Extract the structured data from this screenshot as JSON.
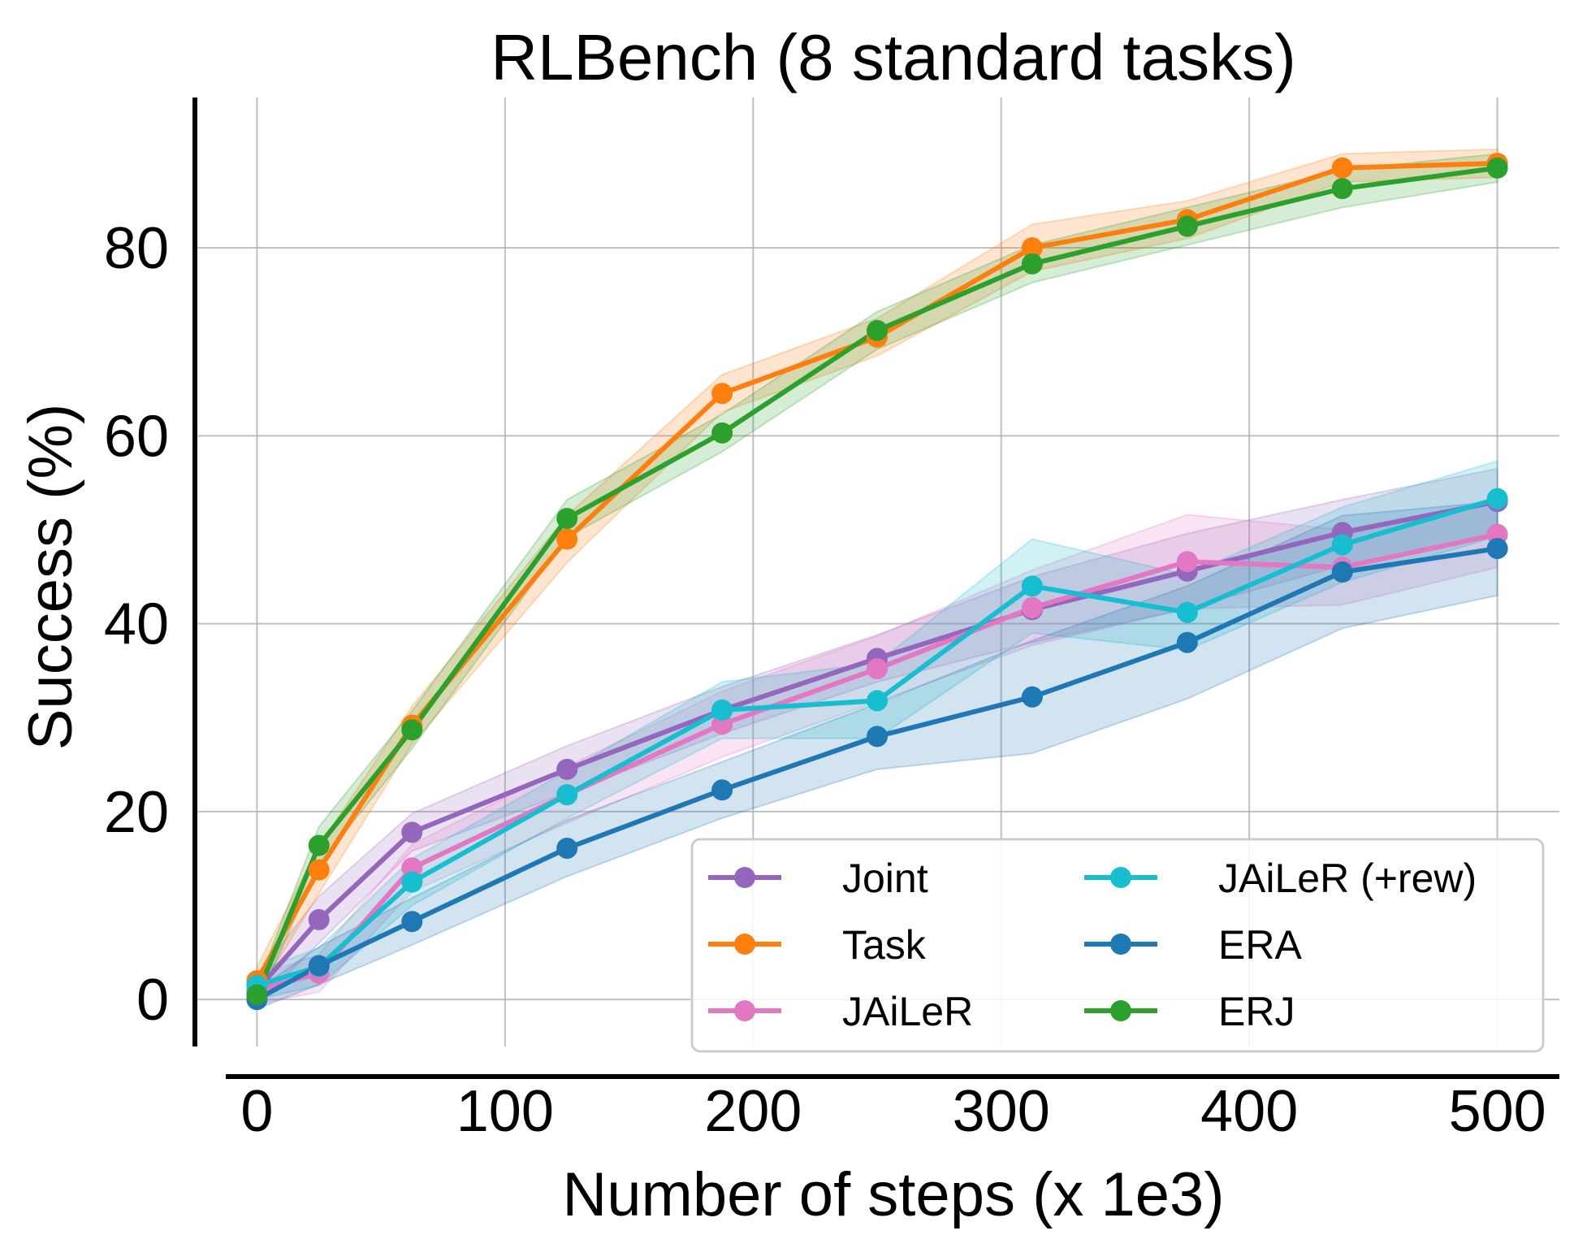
{
  "chart_data": {
    "type": "line",
    "title": "RLBench (8 standard tasks)",
    "xlabel": "Number of steps (x 1e3)",
    "ylabel": "Success (%)",
    "xlim": [
      -25,
      525
    ],
    "ylim": [
      -5,
      96
    ],
    "xticks": [
      0,
      100,
      200,
      300,
      400,
      500
    ],
    "yticks": [
      0,
      20,
      40,
      60,
      80
    ],
    "grid": true,
    "legend": {
      "placement": "bottom-right",
      "columns": 2
    },
    "x": [
      0,
      25,
      62.5,
      125,
      187.5,
      250,
      312.5,
      375,
      437.5,
      500
    ],
    "series": [
      {
        "name": "Joint",
        "color": "#9467bd",
        "values": [
          1.0,
          8.5,
          17.8,
          24.5,
          30.8,
          36.3,
          41.5,
          45.6,
          49.7,
          53.0
        ],
        "band": [
          1.5,
          2.5,
          2.0,
          2.5,
          2.5,
          2.5,
          3.5,
          4.0,
          3.5,
          3.5
        ]
      },
      {
        "name": "Task",
        "color": "#ff7f0e",
        "values": [
          2.0,
          13.8,
          29.2,
          49.0,
          64.5,
          70.5,
          80.0,
          83.0,
          88.5,
          89.0
        ],
        "band": [
          1.5,
          2.5,
          2.0,
          2.5,
          2.0,
          2.0,
          2.5,
          2.0,
          1.5,
          1.5
        ]
      },
      {
        "name": "JAiLeR",
        "color": "#e377c2",
        "values": [
          1.0,
          2.8,
          14.0,
          21.8,
          29.3,
          35.2,
          41.7,
          46.6,
          46.0,
          49.5
        ],
        "band": [
          1.5,
          2.0,
          2.5,
          3.0,
          3.5,
          3.5,
          4.0,
          5.0,
          4.0,
          3.5
        ]
      },
      {
        "name": "JAiLeR (+rew)",
        "color": "#17becf",
        "values": [
          1.5,
          3.5,
          12.5,
          21.8,
          30.8,
          31.8,
          44.0,
          41.2,
          48.4,
          53.3
        ],
        "band": [
          1.5,
          2.0,
          2.5,
          2.5,
          3.0,
          4.0,
          5.0,
          4.0,
          4.0,
          4.0
        ]
      },
      {
        "name": "ERA",
        "color": "#1f77b4",
        "values": [
          0.0,
          3.6,
          8.3,
          16.1,
          22.3,
          28.0,
          32.2,
          38.0,
          45.5,
          48.0
        ],
        "band": [
          1.0,
          2.0,
          2.5,
          3.0,
          3.0,
          3.5,
          6.0,
          6.0,
          6.0,
          5.0
        ]
      },
      {
        "name": "ERJ",
        "color": "#2ca02c",
        "values": [
          0.5,
          16.4,
          28.7,
          51.2,
          60.3,
          71.2,
          78.3,
          82.3,
          86.3,
          88.5
        ],
        "band": [
          1.0,
          2.0,
          2.0,
          2.0,
          2.0,
          2.0,
          2.0,
          2.0,
          2.0,
          1.5
        ]
      }
    ]
  }
}
